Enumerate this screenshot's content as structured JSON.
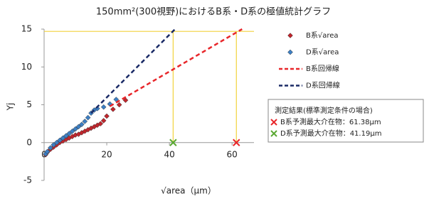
{
  "chart_data": {
    "type": "scatter",
    "title": "150mm²(300視野)におけるB系・D系の極値統計グラフ",
    "x_label": "√area（μm）",
    "y_label": "Yj",
    "xlim": [
      0,
      67
    ],
    "ylim": [
      -5,
      15
    ],
    "xticks": [
      0,
      20,
      40,
      60
    ],
    "yticks": [
      -5,
      0,
      5,
      10,
      15
    ],
    "series": [
      {
        "name": "B系√area",
        "color": "#c0262d",
        "x": [
          0.5,
          1,
          2,
          3,
          4,
          5,
          6,
          7,
          8,
          9,
          10,
          11,
          12,
          13,
          14,
          15,
          16,
          17,
          18,
          19,
          20,
          22,
          24,
          26
        ],
        "values": [
          -1.6,
          -1.3,
          -0.9,
          -0.6,
          -0.3,
          0,
          0.2,
          0.4,
          0.6,
          0.8,
          1.0,
          1.1,
          1.3,
          1.5,
          1.7,
          1.9,
          2.1,
          2.3,
          2.5,
          2.9,
          3.5,
          4.4,
          5.0,
          5.6
        ]
      },
      {
        "name": "D系√area",
        "color": "#3c7fc4",
        "x": [
          0.5,
          1,
          2,
          3,
          4,
          5,
          6,
          7,
          8,
          9,
          10,
          11,
          12,
          13,
          14,
          15,
          16,
          17,
          19,
          21,
          23
        ],
        "values": [
          -1.5,
          -1.2,
          -0.7,
          -0.3,
          0,
          0.3,
          0.6,
          0.9,
          1.2,
          1.5,
          1.8,
          2.1,
          2.4,
          2.8,
          3.3,
          3.9,
          4.3,
          4.5,
          4.7,
          5.1,
          5.7
        ]
      },
      {
        "name": "B系回帰線",
        "color": "#e8262a",
        "line": true,
        "x": [
          21,
          63.2
        ],
        "values": [
          4.8,
          15
        ]
      },
      {
        "name": "D系回帰線",
        "color": "#1a2a66",
        "line": true,
        "x": [
          15,
          41.8
        ],
        "values": [
          3.9,
          15
        ]
      }
    ],
    "reference": {
      "color": "#f2d23c",
      "y": 14.7,
      "x": [
        41.19,
        61.38
      ]
    },
    "markers": [
      {
        "x": 61.38,
        "y": 0,
        "color": "#e8262a"
      },
      {
        "x": 41.19,
        "y": 0,
        "color": "#5aa832"
      }
    ],
    "results": {
      "title": "測定結果(標準測定条件の場合)",
      "items": [
        {
          "text": "B系予測最大介在物：61.38μm",
          "color": "#e8262a"
        },
        {
          "text": "D系予測最大介在物：41.19μm",
          "color": "#5aa832"
        }
      ]
    }
  }
}
